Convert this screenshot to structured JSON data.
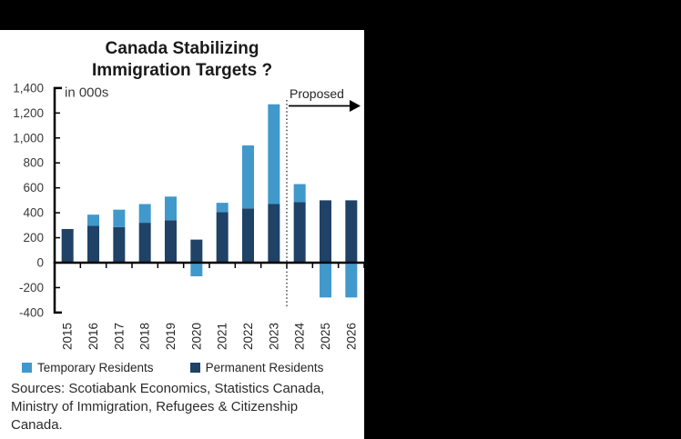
{
  "chart_data": {
    "type": "bar",
    "stacked": true,
    "title": "Canada Stabilizing Immigration Targets ?",
    "title_lines": [
      "Canada Stabilizing",
      "Immigration Targets ?"
    ],
    "unit_label": "in 000s",
    "categories": [
      "2015",
      "2016",
      "2017",
      "2018",
      "2019",
      "2020",
      "2021",
      "2022",
      "2023",
      "2024",
      "2025",
      "2026"
    ],
    "series": [
      {
        "name": "Temporary Residents",
        "color": "#4198CB",
        "values": [
          0,
          90,
          140,
          150,
          190,
          -100,
          75,
          505,
          800,
          145,
          -270,
          -270
        ]
      },
      {
        "name": "Permanent Residents",
        "color": "#1F4266",
        "values": [
          270,
          295,
          285,
          320,
          340,
          185,
          405,
          435,
          470,
          485,
          500,
          500
        ]
      }
    ],
    "ylim": [
      -400,
      1400
    ],
    "ytick_step": 200,
    "ytick_labels": [
      "-400",
      "-200",
      "0",
      "200",
      "400",
      "600",
      "800",
      "1,000",
      "1,200",
      "1,400"
    ],
    "grid": false,
    "legend_position": "bottom",
    "annotation": {
      "label": "Proposed",
      "divider_after_category": "2023"
    },
    "sources_lines": [
      "Sources: Scotiabank Economics, Statistics Canada,",
      "Ministry of Immigration, Refugees & Citizenship",
      "Canada."
    ]
  }
}
